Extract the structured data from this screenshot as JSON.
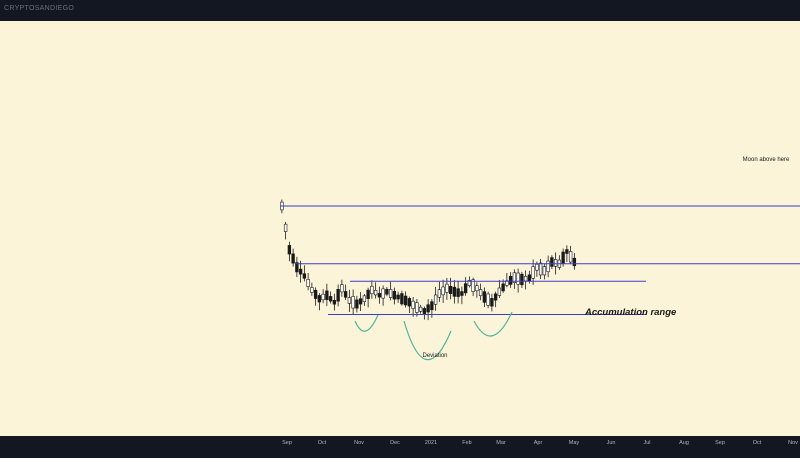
{
  "header": {
    "watermark": "CRYPTOSANDIEGO"
  },
  "colors": {
    "background": "#fcf4d9",
    "frame": "#131722",
    "level_line": "#3d3dcc",
    "wick_and_candle": "#1a1a1a",
    "pattern_curve": "#4fb59a"
  },
  "chart_data": {
    "type": "candlestick",
    "title": "",
    "xlabel": "",
    "ylabel": "",
    "x_ticks": [
      "Sep",
      "Oct",
      "Nov",
      "Dec",
      "2021",
      "Feb",
      "Mar",
      "Apr",
      "May",
      "Jun",
      "Jul",
      "Aug",
      "Sep",
      "Oct",
      "Nov"
    ],
    "ylim": [
      0,
      100
    ],
    "price_path": [
      [
        0,
        80
      ],
      [
        2,
        55
      ],
      [
        4,
        45
      ],
      [
        6,
        40
      ],
      [
        8,
        32
      ],
      [
        10,
        27
      ],
      [
        12,
        29
      ],
      [
        14,
        25
      ],
      [
        16,
        33
      ],
      [
        18,
        26
      ],
      [
        20,
        24
      ],
      [
        22,
        27
      ],
      [
        24,
        32
      ],
      [
        26,
        29
      ],
      [
        28,
        31
      ],
      [
        30,
        29
      ],
      [
        32,
        27
      ],
      [
        34,
        25
      ],
      [
        36,
        22
      ],
      [
        38,
        20
      ],
      [
        40,
        23
      ],
      [
        42,
        30
      ],
      [
        44,
        33
      ],
      [
        46,
        31
      ],
      [
        48,
        30
      ],
      [
        50,
        36
      ],
      [
        52,
        33
      ],
      [
        54,
        28
      ],
      [
        56,
        25
      ],
      [
        58,
        31
      ],
      [
        60,
        36
      ],
      [
        62,
        39
      ],
      [
        64,
        38
      ],
      [
        66,
        39
      ],
      [
        68,
        45
      ],
      [
        70,
        43
      ],
      [
        72,
        48
      ],
      [
        74,
        47
      ],
      [
        76,
        54
      ],
      [
        78,
        48
      ]
    ],
    "levels": [
      {
        "value": 80,
        "label": "Moon above here"
      },
      {
        "value": 47
      },
      {
        "value": 37
      },
      {
        "value": 18
      }
    ],
    "annotations": [
      {
        "text": "Accumulation range"
      },
      {
        "text": "Deviation"
      }
    ]
  }
}
